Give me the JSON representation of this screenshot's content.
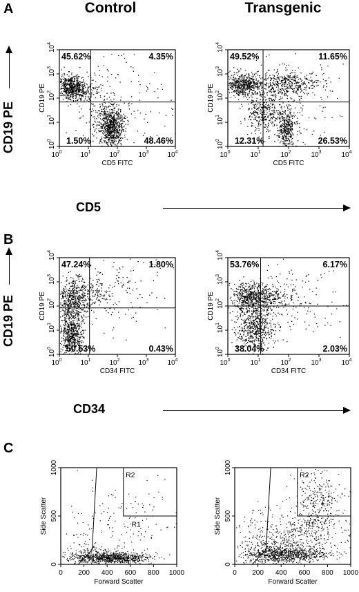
{
  "figure": {
    "panel_letters": [
      "A",
      "B",
      "C"
    ],
    "column_headers": [
      "Control",
      "Transgenic"
    ],
    "shared_y_title": "CD19 PE",
    "row_a_x_title": "CD5",
    "row_b_x_title": "CD34"
  },
  "flow_plots": [
    {
      "row": "A",
      "column": "Control",
      "x_label": "CD5 FITC",
      "y_label": "CD19 PE",
      "quadrants": {
        "upper_left": "45.62%",
        "upper_right": "4.35%",
        "lower_left": "1.50%",
        "lower_right": "48.46%"
      },
      "tick_labels": {
        "decades": [
          "0",
          "1",
          "2",
          "3",
          "4"
        ],
        "base": "10"
      }
    },
    {
      "row": "A",
      "column": "Transgenic",
      "x_label": "CD5 FITC",
      "y_label": "CD19 PE",
      "quadrants": {
        "upper_left": "49.52%",
        "upper_right": "11.65%",
        "lower_left": "12.31%",
        "lower_right": "26.53%"
      },
      "tick_labels": {
        "decades": [
          "0",
          "1",
          "2",
          "3",
          "4"
        ],
        "base": "10"
      }
    },
    {
      "row": "B",
      "column": "Control",
      "x_label": "CD34 FITC",
      "y_label": "CD19 PE",
      "quadrants": {
        "upper_left": "47.24%",
        "upper_right": "1.80%",
        "lower_left": "50.53%",
        "lower_right": "0.43%"
      },
      "tick_labels": {
        "decades": [
          "0",
          "1",
          "2",
          "3",
          "4"
        ],
        "base": "10"
      }
    },
    {
      "row": "B",
      "column": "Transgenic",
      "x_label": "CD34 FITC",
      "y_label": "CD19 PE",
      "quadrants": {
        "upper_left": "53.76%",
        "upper_right": "6.17%",
        "lower_left": "38.04%",
        "lower_right": "2.03%"
      },
      "tick_labels": {
        "decades": [
          "0",
          "1",
          "2",
          "3",
          "4"
        ],
        "base": "10"
      }
    }
  ],
  "scatter_plots": [
    {
      "row": "C",
      "column": "Control",
      "x_label": "Forward Scatter",
      "y_label": "Side Scatter",
      "gates": [
        "R2",
        "R1"
      ],
      "x_ticks": [
        "0",
        "200",
        "400",
        "600",
        "800",
        "1000"
      ],
      "y_ticks": [
        "0",
        "500",
        "1000"
      ]
    },
    {
      "row": "C",
      "column": "Transgenic",
      "x_label": "Forward Scatter",
      "y_label": "Side Scatter",
      "gates": [
        "R2",
        "R1"
      ],
      "x_ticks": [
        "0",
        "200",
        "400",
        "600",
        "800",
        "1000"
      ],
      "y_ticks": [
        "0",
        "500",
        "1000"
      ]
    }
  ]
}
